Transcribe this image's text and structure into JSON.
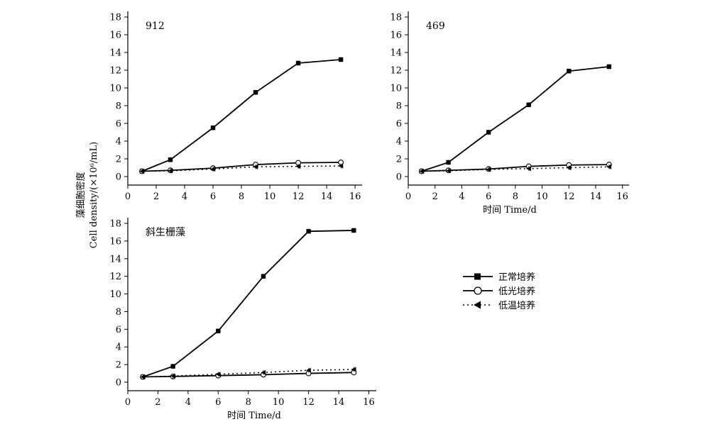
{
  "ylabel_cn": "藻细胞密度",
  "ylabel_en": "Cell density/(×10⁶/mL)",
  "xlabel": "时间 Time/d",
  "legend": [
    {
      "name": "正常培养",
      "marker": "square",
      "dash": false
    },
    {
      "name": "低光培养",
      "marker": "circle",
      "dash": false
    },
    {
      "name": "低温培养",
      "marker": "triangle-left",
      "dash": true
    }
  ],
  "chart_data": [
    {
      "type": "line",
      "title": "912",
      "x": [
        1,
        3,
        6,
        9,
        12,
        15
      ],
      "xlim": [
        0,
        16
      ],
      "ylim": [
        0,
        18
      ],
      "xticks": [
        0,
        2,
        4,
        6,
        8,
        10,
        12,
        14,
        16
      ],
      "yticks": [
        0,
        2,
        4,
        6,
        8,
        10,
        12,
        14,
        16,
        18
      ],
      "xlabel": "",
      "ylabel": "藻细胞密度 Cell density/(×10⁶/mL)",
      "series": [
        {
          "name": "正常培养",
          "values": [
            0.6,
            1.9,
            5.5,
            9.5,
            12.8,
            13.2
          ]
        },
        {
          "name": "低光培养",
          "values": [
            0.6,
            0.7,
            0.95,
            1.35,
            1.55,
            1.6
          ]
        },
        {
          "name": "低温培养",
          "values": [
            0.6,
            0.65,
            0.85,
            1.1,
            1.15,
            1.2
          ]
        }
      ]
    },
    {
      "type": "line",
      "title": "469",
      "x": [
        1,
        3,
        6,
        9,
        12,
        15
      ],
      "xlim": [
        0,
        16
      ],
      "ylim": [
        0,
        18
      ],
      "xticks": [
        0,
        2,
        4,
        6,
        8,
        10,
        12,
        14,
        16
      ],
      "yticks": [
        0,
        2,
        4,
        6,
        8,
        10,
        12,
        14,
        16,
        18
      ],
      "xlabel": "时间 Time/d",
      "ylabel": "",
      "series": [
        {
          "name": "正常培养",
          "values": [
            0.6,
            1.6,
            5.0,
            8.1,
            11.9,
            12.4
          ]
        },
        {
          "name": "低光培养",
          "values": [
            0.6,
            0.7,
            0.85,
            1.15,
            1.3,
            1.35
          ]
        },
        {
          "name": "低温培养",
          "values": [
            0.6,
            0.65,
            0.8,
            0.9,
            1.0,
            1.1
          ]
        }
      ]
    },
    {
      "type": "line",
      "title": "斜生栅藻",
      "x": [
        1,
        3,
        6,
        9,
        12,
        15
      ],
      "xlim": [
        0,
        16
      ],
      "ylim": [
        0,
        18
      ],
      "xticks": [
        0,
        2,
        4,
        6,
        8,
        10,
        12,
        14,
        16
      ],
      "yticks": [
        0,
        2,
        4,
        6,
        8,
        10,
        12,
        14,
        16,
        18
      ],
      "xlabel": "时间 Time/d",
      "ylabel": "",
      "series": [
        {
          "name": "正常培养",
          "values": [
            0.6,
            1.8,
            5.8,
            12.0,
            17.1,
            17.2
          ]
        },
        {
          "name": "低光培养",
          "values": [
            0.6,
            0.65,
            0.75,
            0.85,
            1.0,
            1.1
          ]
        },
        {
          "name": "低温培养",
          "values": [
            0.6,
            0.7,
            0.9,
            1.1,
            1.35,
            1.45
          ]
        }
      ]
    }
  ]
}
